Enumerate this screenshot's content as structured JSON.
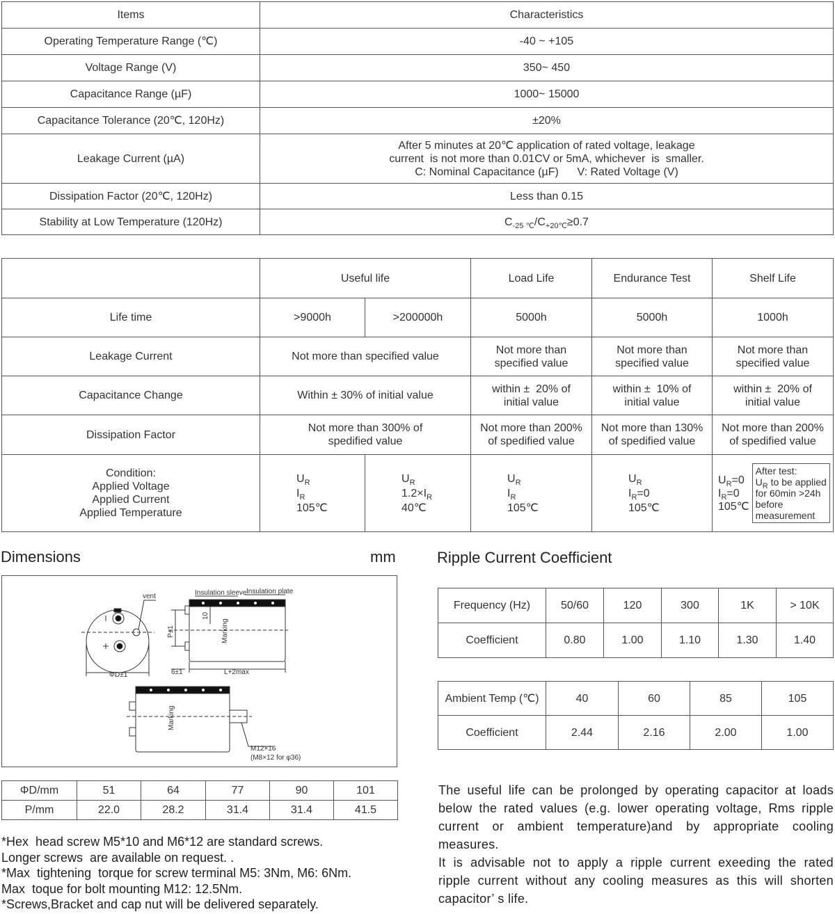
{
  "spec_table": {
    "headers": [
      "Items",
      "Characteristics"
    ],
    "rows": [
      {
        "item": "Operating Temperature Range (℃)",
        "value": "-40 ~ +105"
      },
      {
        "item": "Voltage Range (V)",
        "value": "350~ 450"
      },
      {
        "item": "Capacitance Range (µF)",
        "value": "1000~ 15000"
      },
      {
        "item": "Capacitance Tolerance (20℃, 120Hz)",
        "value": "±20%"
      },
      {
        "item": "Leakage Current (µA)",
        "value": [
          "After 5 minutes at 20℃ application of rated voltage, leakage",
          "current  is not more than 0.01CV or 5mA, whichever  is  smaller.",
          "C: Nominal Capacitance (µF)      V: Rated Voltage (V)"
        ]
      },
      {
        "item": "Dissipation Factor (20℃, 120Hz)",
        "value": "Less than 0.15"
      },
      {
        "item": "Stability at Low Temperature (120Hz)",
        "value": [
          [
            {
              "text": "C",
              "sub": "-25 ℃"
            },
            {
              "text": "/C",
              "sub": "+20℃"
            },
            {
              "text": "≥0.7"
            }
          ]
        ]
      }
    ]
  },
  "life_table": {
    "columns": [
      "Useful life",
      "Load Life",
      "Endurance Test",
      "Shelf Life"
    ],
    "rows": [
      {
        "label": "Life time",
        "cells": [
          ">9000h",
          ">200000h",
          "5000h",
          "5000h",
          "1000h"
        ]
      },
      {
        "label": "Leakage Current",
        "cells": [
          "Not more than specified value",
          [
            "Not more than",
            "specified value"
          ],
          [
            "Not more than",
            "specified value"
          ],
          [
            "Not more than",
            "specified value"
          ]
        ]
      },
      {
        "label": "Capacitance Change",
        "cells": [
          "Within ± 30% of initial value",
          [
            "within ±  20% of",
            "initial value"
          ],
          [
            "within ±  10% of",
            "initial value"
          ],
          [
            "within ±  20% of",
            "initial value"
          ]
        ]
      },
      {
        "label": "Dissipation Factor",
        "cells": [
          [
            "Not more than 300% of",
            "spedified value"
          ],
          [
            "Not more than 200%",
            "of spedified value"
          ],
          [
            "Not more than 130%",
            "of spedified value"
          ],
          [
            "Not more than 200%",
            "of spedified value"
          ]
        ]
      },
      {
        "label": [
          "Condition:",
          "Applied Voltage",
          "Applied Current",
          "Applied Temperature"
        ],
        "cells": [
          [
            {
              "text": "U",
              "sub": "R"
            },
            {
              "text": "I",
              "sub": "R"
            },
            "105℃"
          ],
          [
            {
              "text": "U",
              "sub": "R"
            },
            {
              "text": "1.2×I",
              "sub": "R"
            },
            "40℃"
          ],
          [
            {
              "text": "U",
              "sub": "R"
            },
            {
              "text": "I",
              "sub": "R"
            },
            "105℃"
          ],
          [
            {
              "text": "U",
              "sub": "R"
            },
            {
              "text": "I",
              "sub": "R",
              "after": "=0"
            },
            "105℃"
          ],
          {
            "lines": [
              {
                "text": "U",
                "sub": "R",
                "after": "=0"
              },
              {
                "text": "I",
                "sub": "R",
                "after": "=0"
              },
              "105℃"
            ],
            "note": [
              "After test:",
              {
                "text": "U",
                "sub": "R",
                "after": " to be applied"
              },
              "for 60min >24h",
              "before",
              "measurement"
            ]
          }
        ]
      }
    ]
  },
  "dimensions": {
    "title": "Dimensions",
    "unit": "mm",
    "drawing_labels": {
      "vent": "vent",
      "insulation_sleeve": "Insulation sleeve",
      "insulation_plate": "Insulation plate",
      "pitch": "P±1",
      "band_height": "10",
      "marking_side": "Marking",
      "diameter": "ΦD±1",
      "offset": "6±1",
      "length": "L+2max",
      "marking_bottom": "Marking",
      "bolt": "M12×16",
      "bolt_alt": "(M8×12 for φ36)"
    },
    "table": {
      "rows": [
        [
          "ΦD/mm",
          "51",
          "64",
          "77",
          "90",
          "101"
        ],
        [
          "P/mm",
          "22.0",
          "28.2",
          "31.4",
          "31.4",
          "41.5"
        ]
      ]
    },
    "notes": [
      "*Hex  head screw M5*10 and M6*12 are standard screws.",
      "Longer screws  are available on request. .",
      "*Max  tightening  torque for screw terminal M5: 3Nm, M6: 6Nm.",
      "Max  toque for bolt mounting M12: 12.5Nm.",
      "*Screws,Bracket and cap nut will be delivered separately."
    ]
  },
  "ripple": {
    "title": "Ripple Current Coefficient",
    "frequency_table": {
      "rows": [
        [
          "Frequency (Hz)",
          "50/60",
          "120",
          "300",
          "1K",
          "> 10K"
        ],
        [
          "Coefficient",
          "0.80",
          "1.00",
          "1.10",
          "1.30",
          "1.40"
        ]
      ]
    },
    "temperature_table": {
      "rows": [
        [
          "Ambient Temp (℃)",
          "40",
          "60",
          "85",
          "105"
        ],
        [
          "Coefficient",
          "2.44",
          "2.16",
          "2.00",
          "1.00"
        ]
      ]
    },
    "paragraphs": [
      [
        "The useful life can be prolonged by operating capacitor at loads",
        "below the rated  values (e.g. lower operating voltage, Rms ripple",
        "current or ambient temperature)and by appropriate cooling",
        "measures."
      ],
      [
        "It is advisable not to apply a ripple current exeeding the rated",
        "ripple current without any cooling measures as this will shorten",
        "capacitor’ s life."
      ]
    ]
  }
}
